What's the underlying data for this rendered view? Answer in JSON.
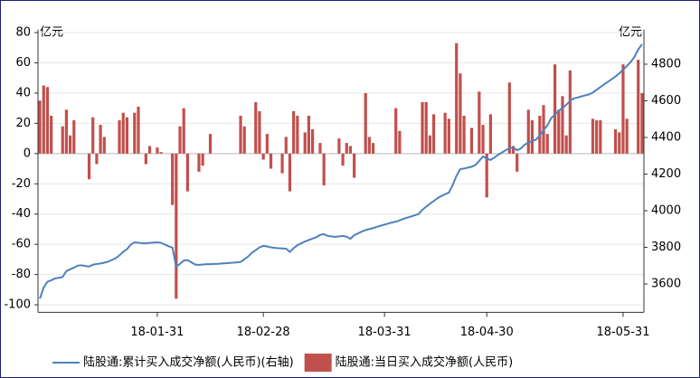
{
  "chart_data": {
    "type": "bar_line",
    "y_unit": "亿元",
    "y2_unit": "亿元",
    "categories": [
      null,
      null,
      null,
      null,
      null,
      null,
      null,
      null,
      null,
      null,
      null,
      null,
      null,
      null,
      null,
      null,
      null,
      null,
      null,
      null,
      null,
      null,
      null,
      null,
      null,
      null,
      null,
      null,
      null,
      null,
      null,
      "18-01-31",
      null,
      null,
      null,
      null,
      null,
      null,
      null,
      null,
      null,
      null,
      null,
      null,
      null,
      null,
      null,
      null,
      null,
      null,
      null,
      null,
      null,
      null,
      null,
      null,
      null,
      null,
      null,
      "18-02-28",
      null,
      null,
      null,
      null,
      null,
      null,
      null,
      null,
      null,
      null,
      null,
      null,
      null,
      null,
      null,
      null,
      null,
      null,
      null,
      null,
      null,
      null,
      null,
      null,
      null,
      null,
      null,
      null,
      null,
      null,
      null,
      "18-03-31",
      null,
      null,
      null,
      null,
      null,
      null,
      null,
      null,
      null,
      null,
      null,
      null,
      null,
      null,
      null,
      null,
      null,
      null,
      null,
      null,
      null,
      null,
      null,
      null,
      null,
      null,
      "18-04-30",
      null,
      null,
      null,
      null,
      null,
      null,
      null,
      null,
      null,
      null,
      null,
      null,
      null,
      null,
      null,
      null,
      null,
      null,
      null,
      null,
      null,
      null,
      null,
      null,
      null,
      null,
      null,
      null,
      null,
      null,
      null,
      null,
      null,
      null,
      null,
      "18-05-31",
      null,
      null,
      null,
      null,
      null
    ],
    "ylim": [
      -105,
      82
    ],
    "yticks": [
      -100,
      -80,
      -60,
      -40,
      -20,
      0,
      20,
      40,
      60,
      80
    ],
    "y2lim": [
      3445,
      4989
    ],
    "y2ticks": [
      3600,
      3800,
      4000,
      4200,
      4400,
      4600,
      4800
    ],
    "grid": true,
    "series": [
      {
        "name": "陆股通:累计买入成交净额(人民币)(右轴)",
        "color": "#4f81bd",
        "kind": "line",
        "axis": "y2",
        "values": [
          3520,
          3580,
          3612,
          3620,
          3630,
          3634,
          3638,
          3670,
          3680,
          3689,
          3700,
          3702,
          3698,
          3695,
          3705,
          3709,
          3712,
          3716,
          3722,
          3731,
          3740,
          3756,
          3776,
          3790,
          3815,
          3827,
          3825,
          3823,
          3822,
          3824,
          3826,
          3827,
          3825,
          3815,
          3806,
          3798,
          3694,
          3710,
          3728,
          3730,
          3718,
          3706,
          3704,
          3706,
          3708,
          3708,
          3709,
          3710,
          3712,
          3713,
          3715,
          3716,
          3718,
          3720,
          3735,
          3750,
          3770,
          3785,
          3800,
          3808,
          3805,
          3800,
          3797,
          3795,
          3794,
          3793,
          3775,
          3795,
          3812,
          3822,
          3832,
          3840,
          3848,
          3855,
          3868,
          3872,
          3862,
          3860,
          3857,
          3860,
          3862,
          3858,
          3847,
          3866,
          3876,
          3886,
          3894,
          3900,
          3905,
          3912,
          3918,
          3924,
          3930,
          3936,
          3940,
          3947,
          3955,
          3962,
          3968,
          3975,
          3982,
          4005,
          4022,
          4038,
          4053,
          4068,
          4080,
          4090,
          4099,
          4140,
          4190,
          4227,
          4230,
          4235,
          4240,
          4250,
          4272,
          4296,
          4285,
          4277,
          4290,
          4305,
          4318,
          4330,
          4340,
          4346,
          4330,
          4340,
          4360,
          4372,
          4380,
          4388,
          4410,
          4440,
          4465,
          4505,
          4525,
          4545,
          4562,
          4578,
          4600,
          4613,
          4618,
          4624,
          4630,
          4635,
          4645,
          4660,
          4675,
          4690,
          4704,
          4718,
          4733,
          4750,
          4770,
          4790,
          4812,
          4840,
          4880,
          4909
        ]
      },
      {
        "name": "陆股通:当日买入成交净额(人民币)",
        "color": "#c0504d",
        "kind": "bar",
        "values": [
          35,
          45,
          44,
          25,
          null,
          null,
          18,
          29,
          12,
          22,
          null,
          null,
          null,
          -17,
          24,
          -7,
          19,
          11,
          null,
          null,
          null,
          22,
          27,
          24,
          null,
          27,
          31,
          null,
          -7,
          5,
          null,
          4,
          1,
          null,
          null,
          -34,
          -96,
          18,
          30,
          -25,
          null,
          null,
          -12,
          -8,
          null,
          13,
          null,
          null,
          null,
          null,
          null,
          null,
          null,
          25,
          18,
          null,
          null,
          34,
          28,
          -4,
          13,
          -10,
          null,
          null,
          -13,
          11,
          -25,
          28,
          25,
          null,
          14,
          25,
          16,
          null,
          7,
          -21,
          null,
          null,
          null,
          10,
          -8,
          7,
          5,
          -16,
          null,
          null,
          40,
          11,
          7,
          null,
          null,
          null,
          null,
          null,
          30,
          15,
          null,
          null,
          null,
          null,
          null,
          34,
          34,
          12,
          26,
          null,
          null,
          27,
          23,
          null,
          73,
          53,
          25,
          null,
          17,
          null,
          41,
          19,
          -29,
          26,
          null,
          null,
          null,
          null,
          47,
          5,
          -12,
          null,
          null,
          29,
          22,
          null,
          25,
          32,
          13,
          null,
          59,
          29,
          38,
          12,
          55,
          null,
          null,
          null,
          null,
          null,
          23,
          22,
          22,
          null,
          null,
          null,
          16,
          14,
          59,
          23,
          null,
          null,
          62,
          40
        ]
      }
    ]
  }
}
